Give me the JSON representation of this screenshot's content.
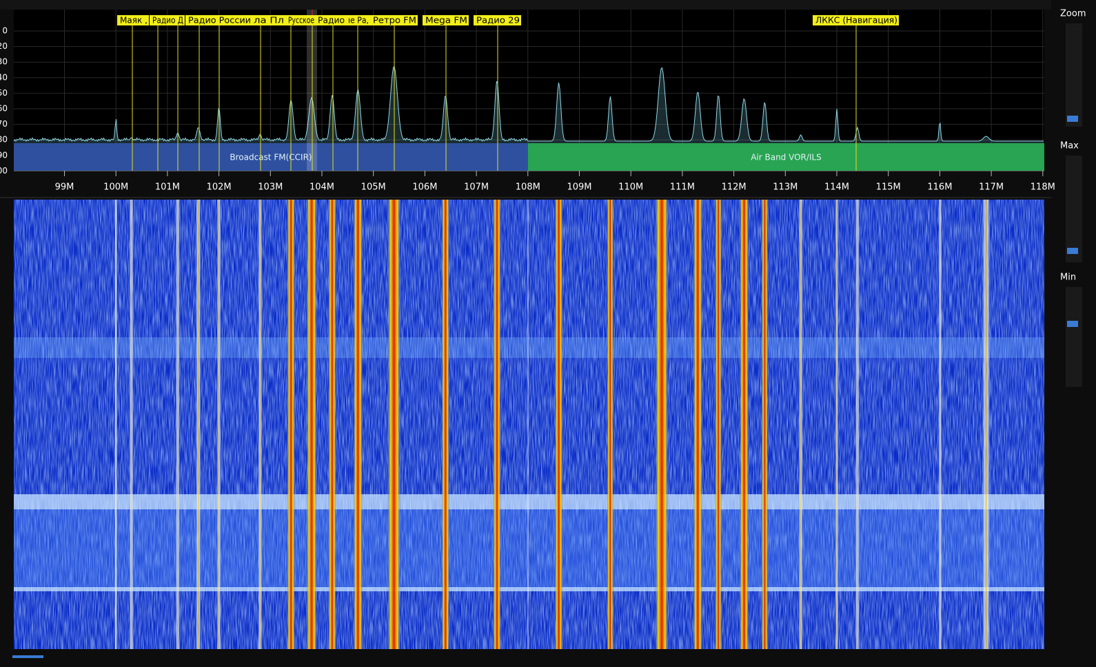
{
  "spectrum": {
    "y_axis_labels": [
      "0",
      "20",
      "30",
      "40",
      "50",
      "60",
      "70",
      "80",
      "90",
      "00"
    ],
    "x_axis_labels": [
      "99M",
      "100M",
      "101M",
      "102M",
      "103M",
      "104M",
      "105M",
      "106M",
      "107M",
      "108M",
      "109M",
      "110M",
      "111M",
      "112M",
      "113M",
      "114M",
      "115M",
      "116M",
      "117M",
      "118M"
    ],
    "bookmarks": [
      "Маяк ,",
      "Радио Д",
      "Радио России",
      "ла Пл",
      "Русское",
      "Радио",
      "ıе Ра,",
      "Ретро FM",
      "Mega FM",
      "Радио 29",
      "ЛККС (Навигация)"
    ],
    "bands": [
      "Broadcast FM(CCIR)",
      "Air Band VOR/ILS"
    ]
  },
  "sidebar": {
    "labels": [
      "Zoom",
      "Max",
      "Min"
    ]
  }
}
